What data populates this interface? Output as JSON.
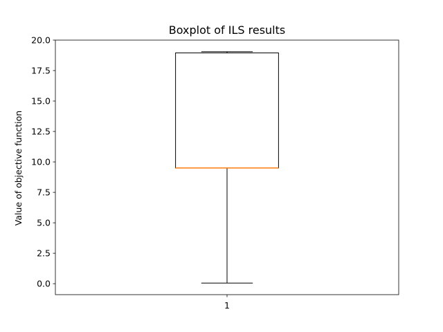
{
  "chart_data": {
    "type": "boxplot",
    "title": "Boxplot of ILS results",
    "xlabel": "",
    "ylabel": "Value of objective function",
    "ylim": [
      -0.9,
      20.0
    ],
    "yticks": [
      0.0,
      2.5,
      5.0,
      7.5,
      10.0,
      12.5,
      15.0,
      17.5,
      20.0
    ],
    "ytick_labels": [
      "0.0",
      "2.5",
      "5.0",
      "7.5",
      "10.0",
      "12.5",
      "15.0",
      "17.5",
      "20.0"
    ],
    "xticks": [
      1
    ],
    "xtick_labels": [
      "1"
    ],
    "grid": false,
    "boxes": [
      {
        "category": "1",
        "whisker_low": 0.05,
        "q1": 9.5,
        "median": 9.5,
        "q3": 18.95,
        "whisker_high": 19.05
      }
    ],
    "colors": {
      "box": "#000000",
      "median": "#ff7f0e"
    }
  }
}
